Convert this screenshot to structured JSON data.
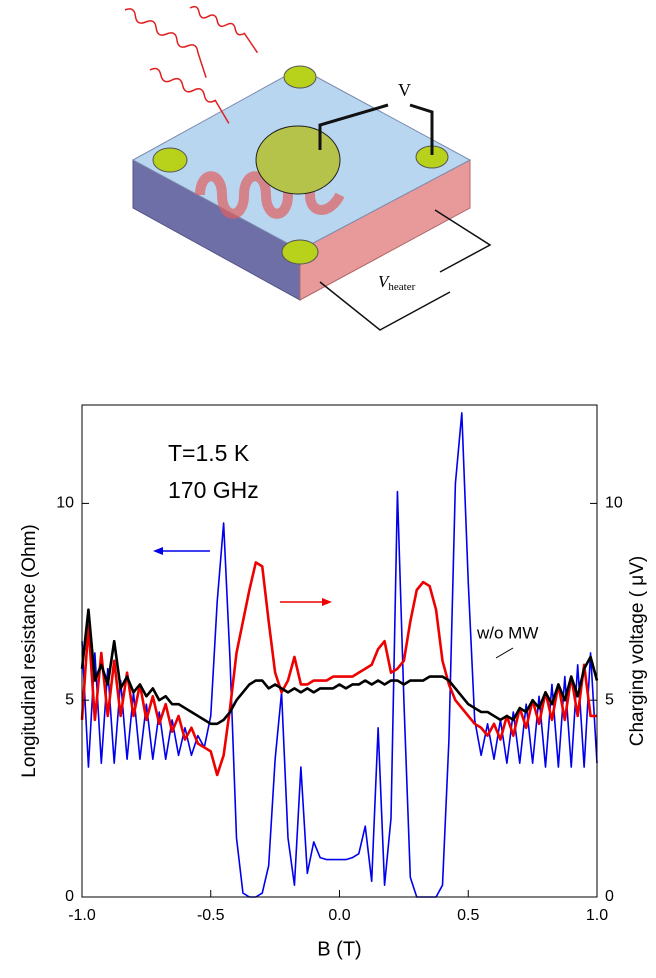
{
  "diagram": {
    "voltage_label": "V",
    "heater_label": "V",
    "heater_subscript": "heater"
  },
  "chart_data": {
    "type": "line",
    "xlabel": "B (T)",
    "ylabel": "Longitudinal resistance (Ohm)",
    "y2label": "Charging voltage ( μV)",
    "annotations": [
      "T=1.5 K",
      "170 GHz"
    ],
    "x": [
      -1.0,
      -0.975,
      -0.95,
      -0.925,
      -0.9,
      -0.875,
      -0.85,
      -0.825,
      -0.8,
      -0.775,
      -0.75,
      -0.725,
      -0.7,
      -0.675,
      -0.65,
      -0.625,
      -0.6,
      -0.575,
      -0.55,
      -0.525,
      -0.5,
      -0.475,
      -0.45,
      -0.425,
      -0.4,
      -0.375,
      -0.35,
      -0.325,
      -0.3,
      -0.275,
      -0.25,
      -0.225,
      -0.2,
      -0.175,
      -0.15,
      -0.125,
      -0.1,
      -0.075,
      -0.05,
      -0.025,
      0.0,
      0.025,
      0.05,
      0.075,
      0.1,
      0.125,
      0.15,
      0.175,
      0.2,
      0.225,
      0.25,
      0.275,
      0.3,
      0.325,
      0.35,
      0.375,
      0.4,
      0.425,
      0.45,
      0.475,
      0.5,
      0.525,
      0.55,
      0.575,
      0.6,
      0.625,
      0.65,
      0.675,
      0.7,
      0.725,
      0.75,
      0.775,
      0.8,
      0.825,
      0.85,
      0.875,
      0.9,
      0.925,
      0.95,
      0.975,
      1.0
    ],
    "series": [
      {
        "color": "#0000ee",
        "values": [
          6.5,
          3.3,
          6.2,
          3.4,
          5.8,
          3.4,
          5.5,
          3.5,
          5.2,
          3.5,
          4.9,
          3.5,
          4.7,
          3.5,
          4.5,
          3.6,
          4.3,
          3.6,
          4.1,
          3.8,
          4.6,
          7.5,
          9.5,
          6.0,
          1.5,
          0.1,
          0.0,
          0.0,
          0.1,
          0.8,
          3.5,
          5.2,
          1.5,
          0.3,
          3.3,
          0.6,
          1.4,
          1.0,
          0.95,
          0.95,
          0.95,
          0.95,
          1.0,
          1.1,
          1.8,
          0.4,
          4.3,
          0.3,
          2.0,
          10.3,
          5.0,
          0.5,
          0.0,
          0.0,
          0.0,
          0.0,
          0.3,
          4.0,
          10.5,
          12.3,
          8.0,
          4.5,
          3.6,
          4.4,
          3.5,
          4.5,
          3.4,
          4.7,
          3.4,
          4.9,
          3.4,
          5.1,
          3.3,
          5.4,
          3.3,
          5.6,
          3.3,
          5.9,
          3.3,
          6.2,
          3.4
        ]
      },
      {
        "color": "#ee0000",
        "axis": "y2",
        "values": [
          4.5,
          6.9,
          4.5,
          6.2,
          4.6,
          6.0,
          4.6,
          5.7,
          4.6,
          5.4,
          4.5,
          5.1,
          4.4,
          4.9,
          4.2,
          4.6,
          4.0,
          4.3,
          3.9,
          3.8,
          3.7,
          3.1,
          3.6,
          4.8,
          6.2,
          7.0,
          7.8,
          8.5,
          8.4,
          7.0,
          5.7,
          5.2,
          5.5,
          6.1,
          5.4,
          5.4,
          5.5,
          5.5,
          5.5,
          5.6,
          5.6,
          5.6,
          5.6,
          5.7,
          5.8,
          5.9,
          6.3,
          6.5,
          5.7,
          5.8,
          6.0,
          7.0,
          7.8,
          8.0,
          7.9,
          7.3,
          6.0,
          5.4,
          5.0,
          4.8,
          4.6,
          4.4,
          4.3,
          4.1,
          4.4,
          4.0,
          4.6,
          4.1,
          4.8,
          4.3,
          5.0,
          4.4,
          5.2,
          4.5,
          5.4,
          4.5,
          5.6,
          4.6,
          5.9,
          4.6,
          4.6
        ]
      },
      {
        "name": "w/o MW",
        "color": "#000000",
        "axis": "y2",
        "values": [
          5.8,
          7.3,
          5.5,
          5.9,
          5.4,
          6.5,
          5.3,
          5.6,
          5.2,
          5.4,
          5.1,
          5.3,
          5.0,
          5.1,
          4.9,
          4.9,
          4.8,
          4.7,
          4.6,
          4.5,
          4.4,
          4.4,
          4.5,
          4.7,
          5.0,
          5.2,
          5.4,
          5.5,
          5.5,
          5.3,
          5.4,
          5.3,
          5.2,
          5.3,
          5.2,
          5.3,
          5.2,
          5.3,
          5.3,
          5.3,
          5.4,
          5.3,
          5.4,
          5.4,
          5.5,
          5.4,
          5.5,
          5.4,
          5.5,
          5.5,
          5.4,
          5.5,
          5.5,
          5.5,
          5.6,
          5.6,
          5.6,
          5.5,
          5.3,
          5.1,
          4.9,
          4.8,
          4.7,
          4.7,
          4.6,
          4.5,
          4.6,
          4.5,
          4.8,
          4.7,
          5.0,
          4.8,
          5.2,
          4.9,
          5.4,
          5.0,
          5.6,
          5.1,
          5.8,
          6.1,
          5.5
        ]
      }
    ],
    "xlim": [
      -1.0,
      1.0
    ],
    "xticks": [
      {
        "value": -1.0,
        "label": "-1.0"
      },
      -0.5,
      {
        "value": 0,
        "label": "0.0"
      },
      0.5,
      {
        "value": 1.0,
        "label": "1.0"
      }
    ],
    "ylim": [
      0,
      12.5
    ],
    "yticks": [
      0,
      5,
      10
    ],
    "y2lim": [
      0,
      12.5
    ],
    "y2ticks": [
      0,
      5,
      10
    ]
  }
}
